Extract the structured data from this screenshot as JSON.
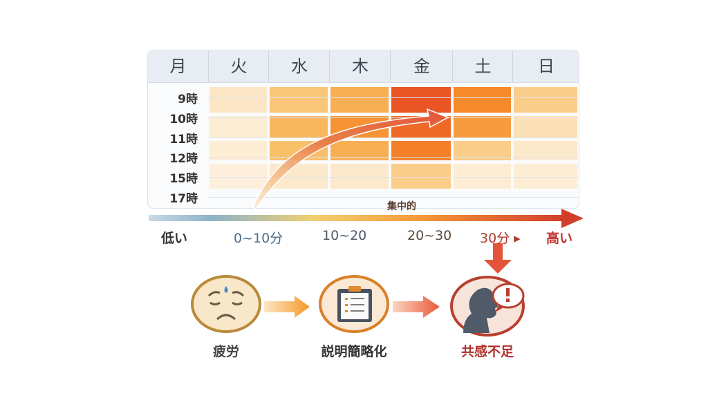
{
  "days": [
    "月",
    "火",
    "水",
    "木",
    "金",
    "土",
    "日"
  ],
  "hours": [
    "9時",
    "10時",
    "11時",
    "12時",
    "15時",
    "17時"
  ],
  "heat_levels": {
    "columns": [
      "火",
      "水",
      "木",
      "金",
      "土",
      "日"
    ],
    "rows": [
      [
        0.1,
        0.35,
        0.5,
        0.95,
        0.7,
        0.3
      ],
      [
        0.05,
        0.45,
        0.65,
        0.85,
        0.6,
        0.15
      ],
      [
        0.05,
        0.4,
        0.5,
        0.75,
        0.3,
        0.08
      ],
      [
        0.03,
        0.08,
        0.08,
        0.3,
        0.05,
        0.05
      ]
    ]
  },
  "trend_arrow_label": "集中的",
  "axis": {
    "low": "低い",
    "ticks": [
      "0~10分",
      "10~20",
      "20~30",
      "30分 ▸"
    ],
    "high": "高い"
  },
  "flow": [
    {
      "label": "疲労",
      "icon": "tired-face-icon"
    },
    {
      "label": "説明簡略化",
      "icon": "clipboard-icon"
    },
    {
      "label": "共感不足",
      "icon": "speaking-person-icon"
    }
  ],
  "colors": {
    "low": "#fdf3e4",
    "mid": "#f9c06a",
    "high": "#f58a2a",
    "peak": "#e84a25",
    "arrow": "#d9452c"
  }
}
